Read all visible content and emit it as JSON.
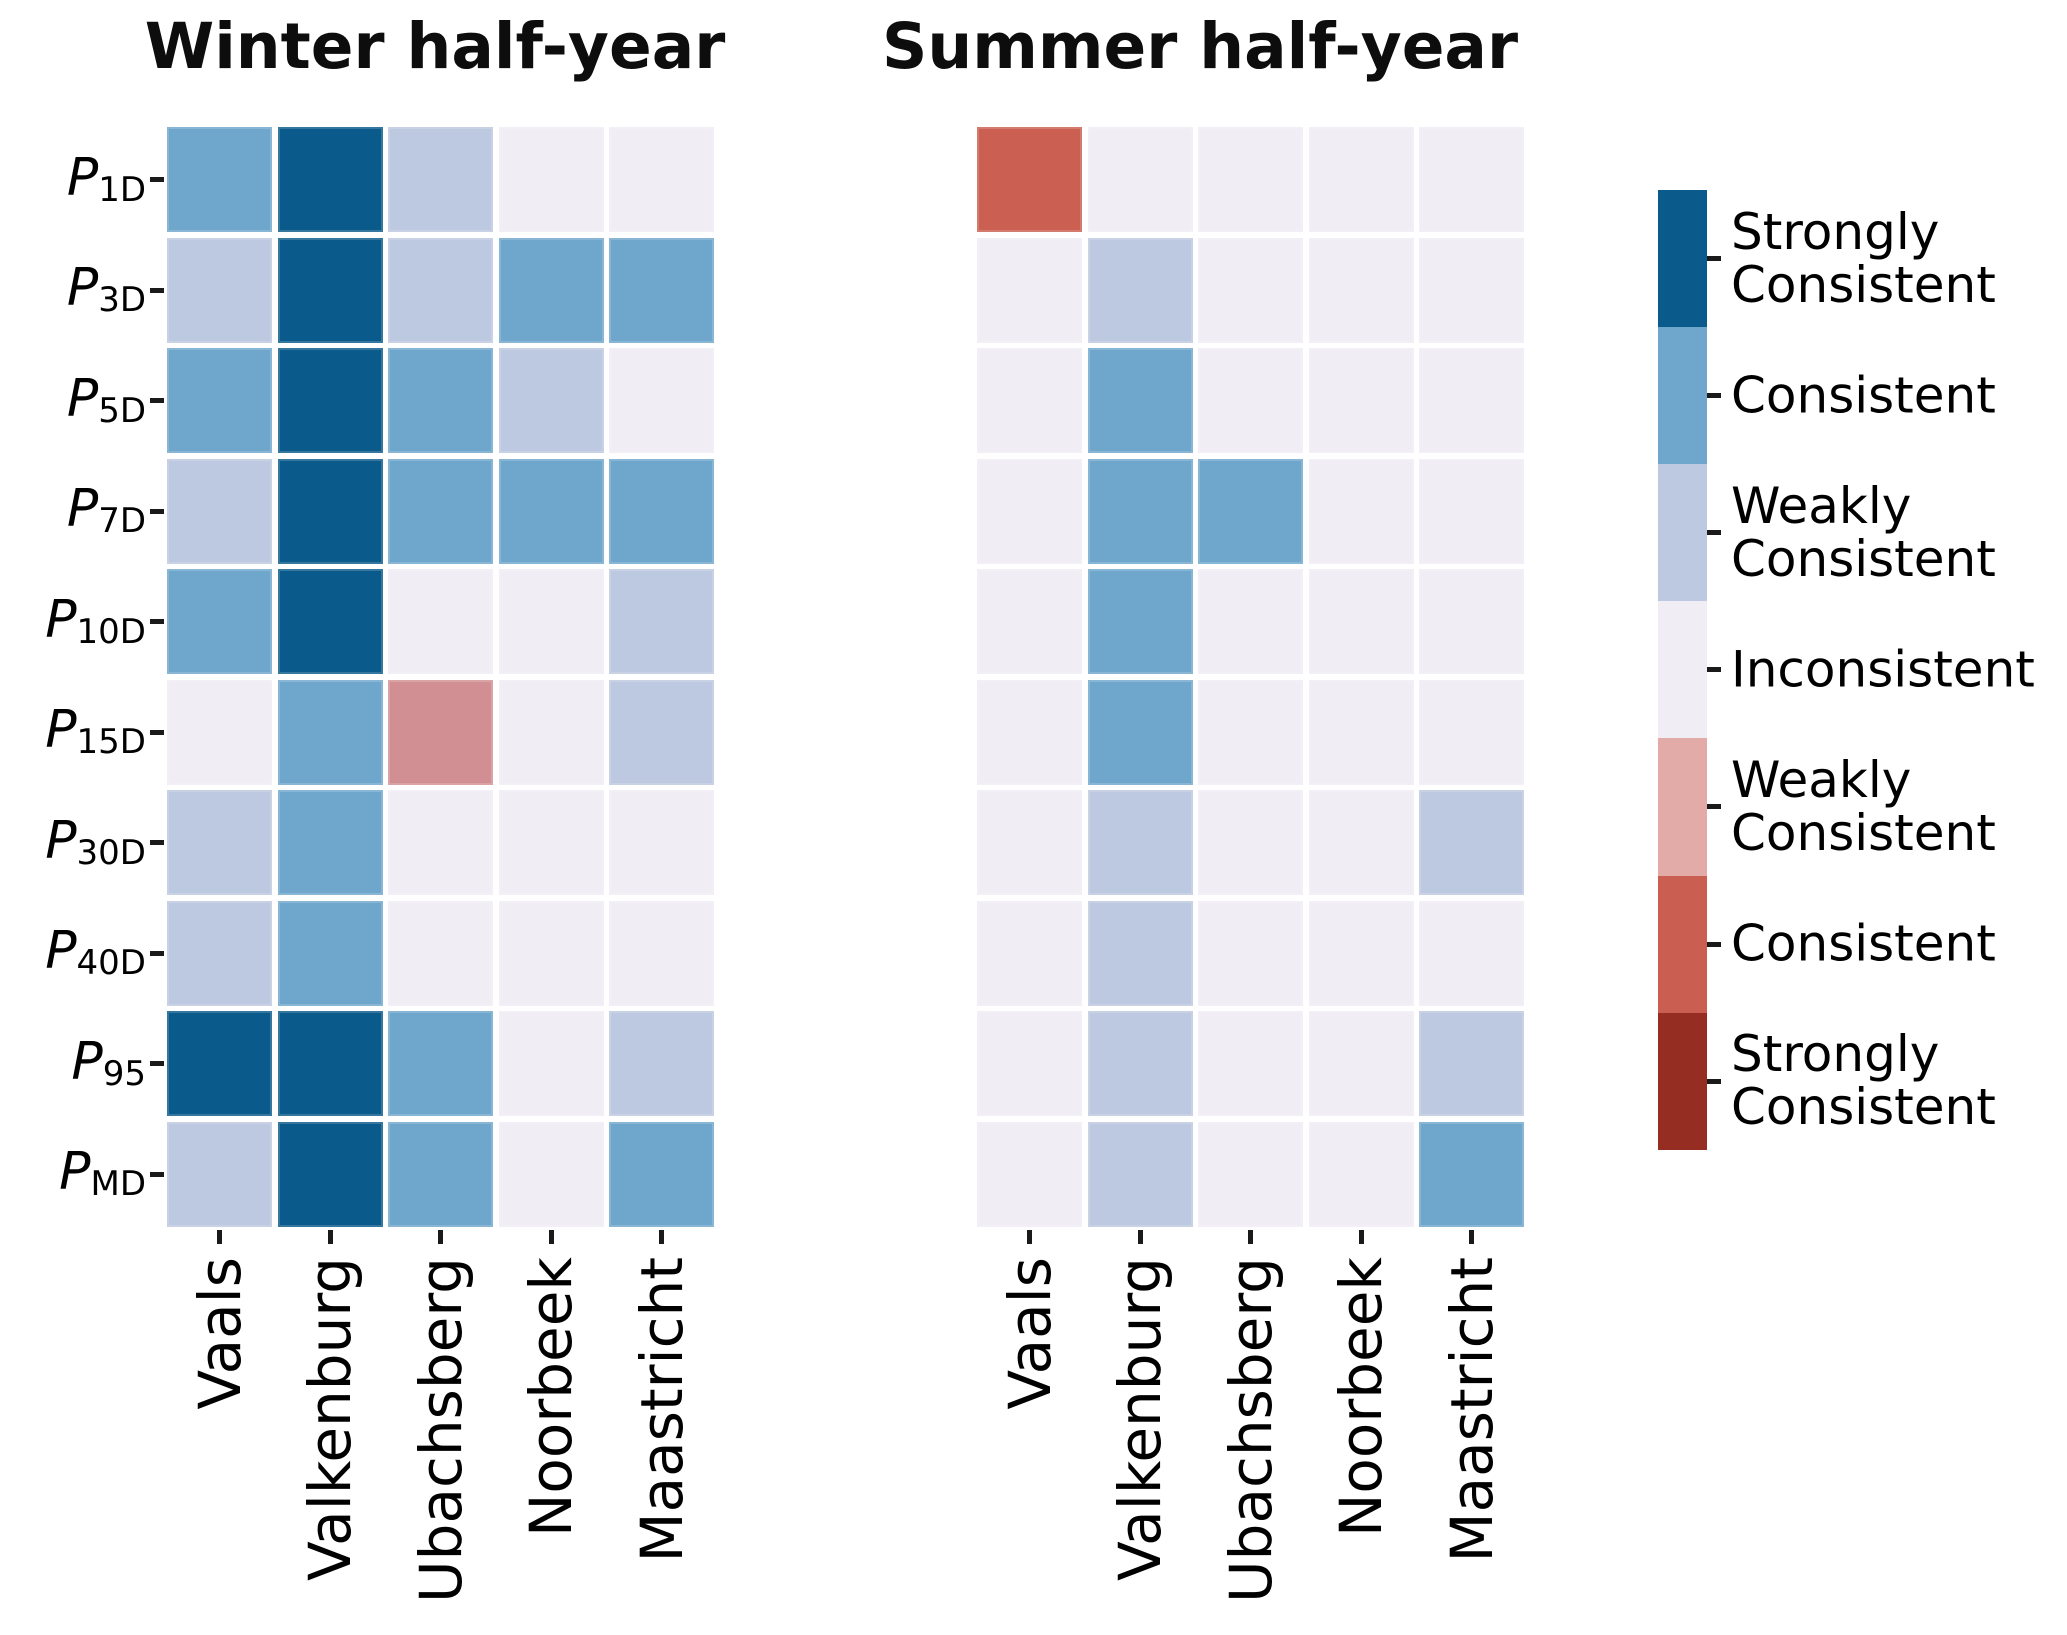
{
  "chart_data": {
    "type": "heatmap",
    "columns": [
      "Vaals",
      "Valkenburg",
      "Ubachsberg",
      "Noorbeek",
      "Maastricht"
    ],
    "rows": [
      {
        "base": "P",
        "sub": "1D"
      },
      {
        "base": "P",
        "sub": "3D"
      },
      {
        "base": "P",
        "sub": "5D"
      },
      {
        "base": "P",
        "sub": "7D"
      },
      {
        "base": "P",
        "sub": "10D"
      },
      {
        "base": "P",
        "sub": "15D"
      },
      {
        "base": "P",
        "sub": "30D"
      },
      {
        "base": "P",
        "sub": "40D"
      },
      {
        "base": "P",
        "sub": "95"
      },
      {
        "base": "P",
        "sub": "MD"
      }
    ],
    "value_scale": {
      "3": "Strongly Consistent",
      "2": "Consistent",
      "1": "Weakly Consistent",
      "0": "Inconsistent",
      "-1": "Weakly Consistent",
      "-2": "Consistent",
      "-3": "Strongly Consistent"
    },
    "palette": {
      "3": "#0a5a8c",
      "2": "#6fa6cb",
      "1": "#bdc9e0",
      "0": "#f0edf4",
      "-1": "#d28f93",
      "-2": "#cb5f51",
      "-3": "#962d22"
    },
    "panels": [
      {
        "id": "winter",
        "title": "Winter half-year",
        "grid": [
          [
            2,
            3,
            1,
            0,
            0
          ],
          [
            1,
            3,
            1,
            2,
            2
          ],
          [
            2,
            3,
            2,
            1,
            0
          ],
          [
            1,
            3,
            2,
            2,
            2
          ],
          [
            2,
            3,
            0,
            0,
            1
          ],
          [
            0,
            2,
            -1,
            0,
            1
          ],
          [
            1,
            2,
            0,
            0,
            0
          ],
          [
            1,
            2,
            0,
            0,
            0
          ],
          [
            3,
            3,
            2,
            0,
            1
          ],
          [
            1,
            3,
            2,
            0,
            2
          ]
        ]
      },
      {
        "id": "summer",
        "title": "Summer half-year",
        "grid": [
          [
            -2,
            0,
            0,
            0,
            0
          ],
          [
            0,
            1,
            0,
            0,
            0
          ],
          [
            0,
            2,
            0,
            0,
            0
          ],
          [
            0,
            2,
            2,
            0,
            0
          ],
          [
            0,
            2,
            0,
            0,
            0
          ],
          [
            0,
            2,
            0,
            0,
            0
          ],
          [
            0,
            1,
            0,
            0,
            1
          ],
          [
            0,
            1,
            0,
            0,
            0
          ],
          [
            0,
            1,
            0,
            0,
            1
          ],
          [
            0,
            1,
            0,
            0,
            2
          ]
        ]
      }
    ],
    "colorbar": {
      "entries": [
        {
          "lines": [
            "Strongly",
            "Consistent"
          ],
          "color": "#0a5a8c"
        },
        {
          "lines": [
            "Consistent"
          ],
          "color": "#6fa6cb"
        },
        {
          "lines": [
            "Weakly",
            "Consistent"
          ],
          "color": "#bdc9e0"
        },
        {
          "lines": [
            "Inconsistent"
          ],
          "color": "#f0edf4"
        },
        {
          "lines": [
            "Weakly",
            "Consistent"
          ],
          "color": "#e2aba7"
        },
        {
          "lines": [
            "Consistent"
          ],
          "color": "#ca5e50"
        },
        {
          "lines": [
            "Strongly",
            "Consistent"
          ],
          "color": "#962d22"
        }
      ]
    }
  }
}
